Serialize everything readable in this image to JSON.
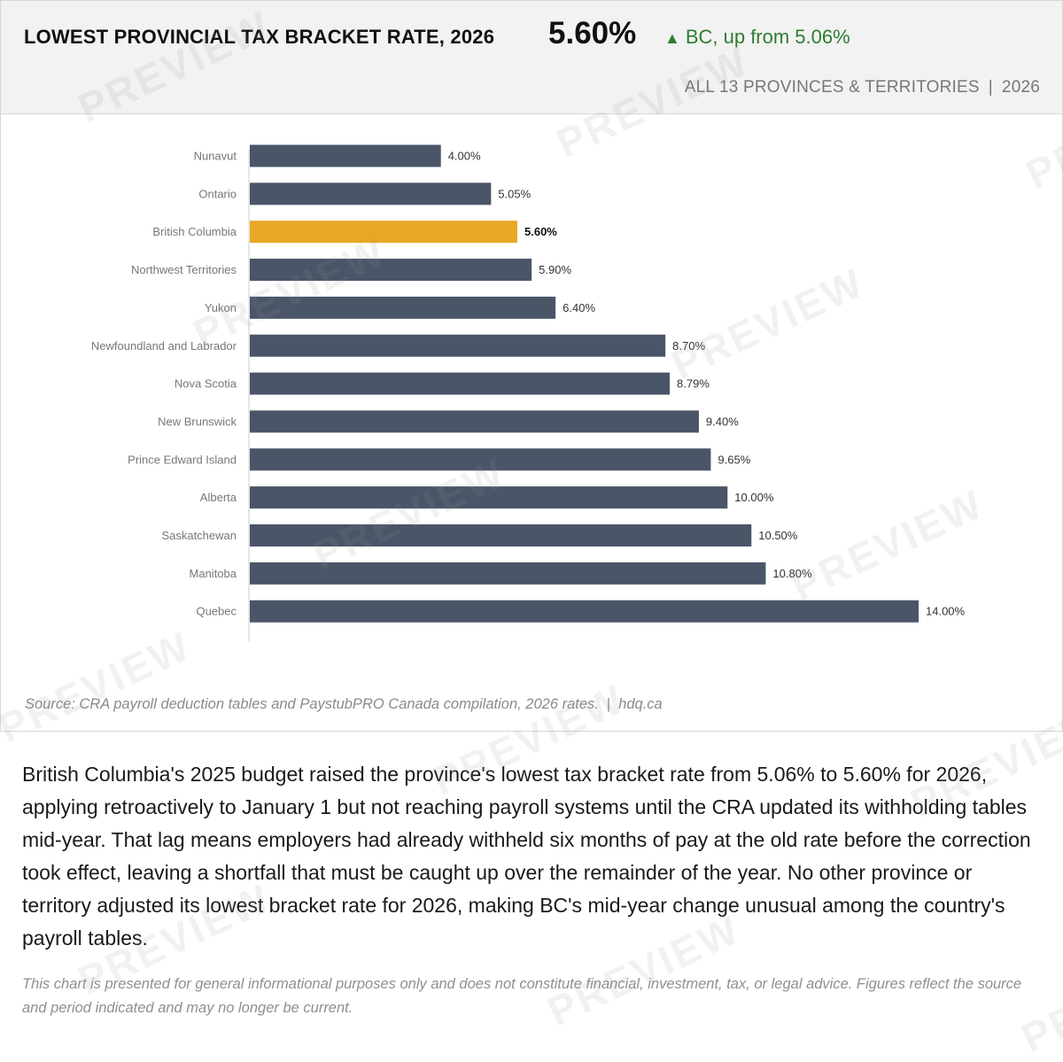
{
  "header": {
    "title": "LOWEST PROVINCIAL TAX BRACKET RATE, 2026",
    "value": "5.60%",
    "change_arrow": "▲",
    "change_text": "BC, up from 5.06%",
    "scope": "ALL 13 PROVINCES & TERRITORIES",
    "scope_sep": "|",
    "year": "2026"
  },
  "colors": {
    "bar": "#4a5568",
    "highlight": "#e8a825",
    "positive": "#2e7d32"
  },
  "chart_data": {
    "type": "bar",
    "orientation": "horizontal",
    "title": "LOWEST PROVINCIAL TAX BRACKET RATE, 2026",
    "categories": [
      "Nunavut",
      "Ontario",
      "British Columbia",
      "Northwest Territories",
      "Yukon",
      "Newfoundland and Labrador",
      "Nova Scotia",
      "New Brunswick",
      "Prince Edward Island",
      "Alberta",
      "Saskatchewan",
      "Manitoba",
      "Quebec"
    ],
    "values": [
      4.0,
      5.05,
      5.6,
      5.9,
      6.4,
      8.7,
      8.79,
      9.4,
      9.65,
      10.0,
      10.5,
      10.8,
      14.0
    ],
    "data_labels": [
      "4.00%",
      "5.05%",
      "5.60%",
      "5.90%",
      "6.40%",
      "8.70%",
      "8.79%",
      "9.40%",
      "9.65%",
      "10.00%",
      "10.50%",
      "10.80%",
      "14.00%"
    ],
    "highlight": "British Columbia",
    "xlim": [
      0,
      14
    ],
    "grid": false,
    "legend": "none"
  },
  "source": {
    "text": "Source: CRA payroll deduction tables and PaystubPRO Canada compilation, 2026 rates.",
    "sep": "|",
    "site": "hdq.ca"
  },
  "description": "British Columbia's 2025 budget raised the province's lowest tax bracket rate from 5.06% to 5.60% for 2026, applying retroactively to January 1 but not reaching payroll systems until the CRA updated its withholding tables mid-year. That lag means employers had already withheld six months of pay at the old rate before the correction took effect, leaving a shortfall that must be caught up over the remainder of the year. No other province or territory adjusted its lowest bracket rate for 2026, making BC's mid-year change unusual among the country's payroll tables.",
  "disclaimer": "This chart is presented for general informational purposes only and does not constitute financial, investment, tax, or legal advice. Figures reflect the source and period indicated and may no longer be current.",
  "watermark": "PREVIEW"
}
